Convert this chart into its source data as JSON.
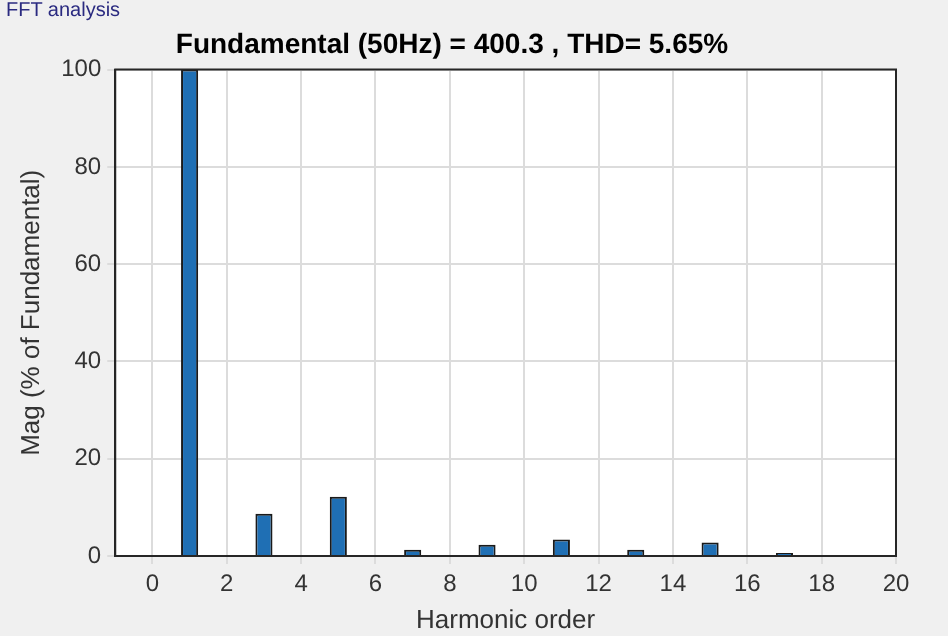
{
  "chart_data": {
    "type": "bar",
    "title": "Fundamental (50Hz) = 400.3 , THD= 5.65%",
    "annotations": [
      "FFT analysis"
    ],
    "xlabel": "Harmonic order",
    "ylabel": "Mag (% of Fundamental)",
    "x": [
      1,
      3,
      5,
      7,
      9,
      11,
      13,
      15,
      17
    ],
    "values": [
      100,
      8.7,
      12.2,
      1.3,
      2.3,
      3.4,
      1.3,
      2.8,
      0.6
    ],
    "color": "#1f6fb4",
    "xlim": [
      -1,
      20
    ],
    "xticks": [
      0,
      2,
      4,
      6,
      8,
      10,
      12,
      14,
      16,
      18,
      20
    ],
    "ylim": [
      0,
      100
    ],
    "yticks": [
      0,
      20,
      40,
      60,
      80,
      100
    ],
    "grid": true,
    "legend": false
  }
}
